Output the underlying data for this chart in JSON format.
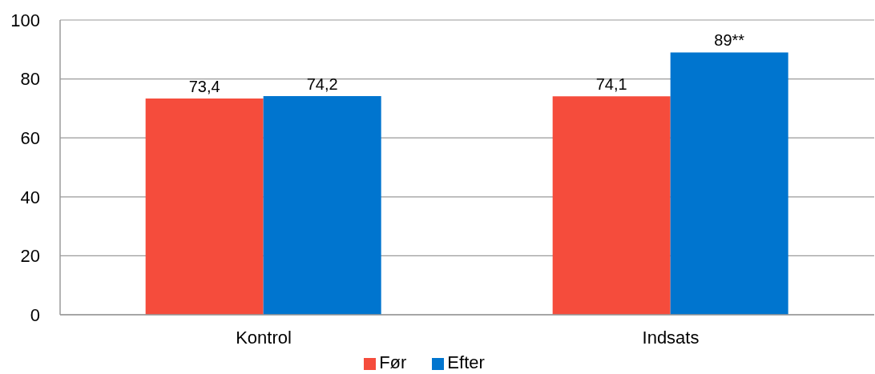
{
  "chart_data": {
    "type": "bar",
    "categories": [
      "Kontrol",
      "Indsats"
    ],
    "series": [
      {
        "name": "Før",
        "color": "#f54c3c",
        "values": [
          73.4,
          74.1
        ],
        "value_labels": [
          "73,4",
          "74,1"
        ]
      },
      {
        "name": "Efter",
        "color": "#0075cf",
        "values": [
          74.2,
          89
        ],
        "value_labels": [
          "74,2",
          "89**"
        ]
      }
    ],
    "ylim": [
      0,
      100
    ],
    "yticks": [
      0,
      20,
      40,
      60,
      80,
      100
    ],
    "grid": "y",
    "legend": "bottom"
  }
}
